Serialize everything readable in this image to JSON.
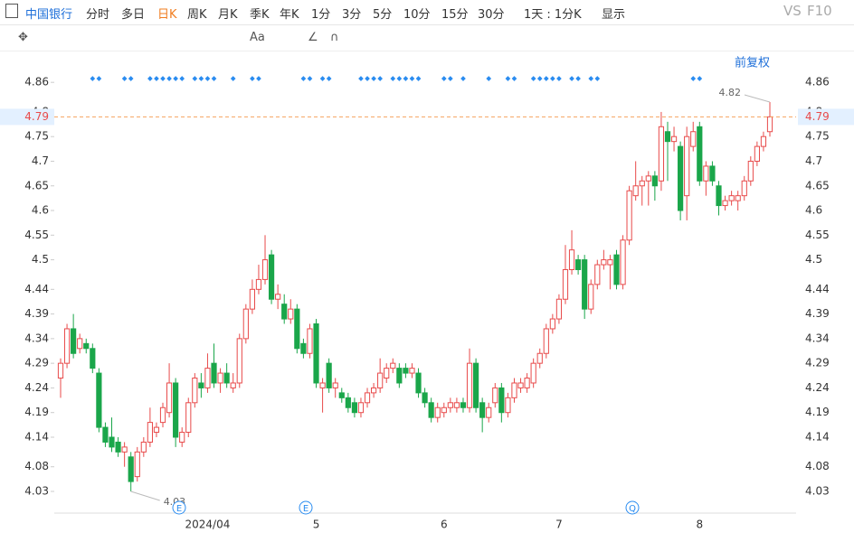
{
  "toolbar": {
    "stock": "中国银行",
    "periods": [
      "分时",
      "多日",
      "日K",
      "周K",
      "月K",
      "季K",
      "年K",
      "1分",
      "3分",
      "5分",
      "10分",
      "15分",
      "30分"
    ],
    "interval": "1天 : 1分K",
    "display": "显示",
    "vs": "VS",
    "f10": "F10",
    "text_tool": "Aa",
    "adjust": "前复权"
  },
  "chart_data": {
    "type": "candlestick",
    "up_color": "#e84a4a",
    "down_color": "#1aa64a",
    "categories": [
      null,
      null,
      null,
      null,
      null,
      null,
      null,
      null,
      null,
      null,
      null,
      null,
      null,
      null,
      null,
      null,
      null,
      null,
      null,
      null,
      null,
      null,
      null,
      "2024/04",
      null,
      null,
      null,
      null,
      null,
      null,
      null,
      null,
      null,
      null,
      null,
      null,
      null,
      null,
      null,
      null,
      "5",
      null,
      null,
      null,
      null,
      null,
      null,
      null,
      null,
      null,
      null,
      null,
      null,
      null,
      null,
      null,
      null,
      null,
      null,
      null,
      "6",
      null,
      null,
      null,
      null,
      null,
      null,
      null,
      null,
      null,
      null,
      null,
      null,
      null,
      null,
      null,
      null,
      null,
      "7",
      null,
      null,
      null,
      null,
      null,
      null,
      null,
      null,
      null,
      null,
      null,
      null,
      null,
      null,
      null,
      null,
      null,
      null,
      null,
      null,
      null,
      "8",
      null,
      null,
      null,
      null,
      null,
      null,
      null,
      null,
      null,
      null
    ],
    "candles": [
      {
        "open": 4.26,
        "high": 4.3,
        "low": 4.22,
        "close": 4.29
      },
      {
        "open": 4.29,
        "high": 4.37,
        "low": 4.28,
        "close": 4.36
      },
      {
        "open": 4.36,
        "high": 4.39,
        "low": 4.3,
        "close": 4.31
      },
      {
        "open": 4.32,
        "high": 4.35,
        "low": 4.31,
        "close": 4.34
      },
      {
        "open": 4.33,
        "high": 4.34,
        "low": 4.31,
        "close": 4.32
      },
      {
        "open": 4.32,
        "high": 4.33,
        "low": 4.27,
        "close": 4.28
      },
      {
        "open": 4.27,
        "high": 4.28,
        "low": 4.15,
        "close": 4.16
      },
      {
        "open": 4.16,
        "high": 4.17,
        "low": 4.12,
        "close": 4.13
      },
      {
        "open": 4.14,
        "high": 4.18,
        "low": 4.11,
        "close": 4.12
      },
      {
        "open": 4.13,
        "high": 4.14,
        "low": 4.1,
        "close": 4.11
      },
      {
        "open": 4.11,
        "high": 4.13,
        "low": 4.08,
        "close": 4.12
      },
      {
        "open": 4.1,
        "high": 4.11,
        "low": 4.03,
        "close": 4.05
      },
      {
        "open": 4.06,
        "high": 4.12,
        "low": 4.05,
        "close": 4.11
      },
      {
        "open": 4.11,
        "high": 4.14,
        "low": 4.1,
        "close": 4.13
      },
      {
        "open": 4.13,
        "high": 4.2,
        "low": 4.12,
        "close": 4.17
      },
      {
        "open": 4.15,
        "high": 4.17,
        "low": 4.14,
        "close": 4.16
      },
      {
        "open": 4.17,
        "high": 4.21,
        "low": 4.16,
        "close": 4.2
      },
      {
        "open": 4.19,
        "high": 4.29,
        "low": 4.18,
        "close": 4.25
      },
      {
        "open": 4.25,
        "high": 4.26,
        "low": 4.12,
        "close": 4.14
      },
      {
        "open": 4.13,
        "high": 4.16,
        "low": 4.12,
        "close": 4.15
      },
      {
        "open": 4.15,
        "high": 4.22,
        "low": 4.14,
        "close": 4.21
      },
      {
        "open": 4.21,
        "high": 4.27,
        "low": 4.2,
        "close": 4.26
      },
      {
        "open": 4.25,
        "high": 4.27,
        "low": 4.22,
        "close": 4.24
      },
      {
        "open": 4.24,
        "high": 4.31,
        "low": 4.23,
        "close": 4.28
      },
      {
        "open": 4.29,
        "high": 4.33,
        "low": 4.24,
        "close": 4.25
      },
      {
        "open": 4.25,
        "high": 4.28,
        "low": 4.23,
        "close": 4.27
      },
      {
        "open": 4.27,
        "high": 4.29,
        "low": 4.24,
        "close": 4.25
      },
      {
        "open": 4.24,
        "high": 4.27,
        "low": 4.23,
        "close": 4.25
      },
      {
        "open": 4.25,
        "high": 4.35,
        "low": 4.24,
        "close": 4.34
      },
      {
        "open": 4.34,
        "high": 4.41,
        "low": 4.33,
        "close": 4.4
      },
      {
        "open": 4.4,
        "high": 4.46,
        "low": 4.39,
        "close": 4.44
      },
      {
        "open": 4.44,
        "high": 4.49,
        "low": 4.43,
        "close": 4.46
      },
      {
        "open": 4.46,
        "high": 4.55,
        "low": 4.45,
        "close": 4.5
      },
      {
        "open": 4.51,
        "high": 4.52,
        "low": 4.41,
        "close": 4.42
      },
      {
        "open": 4.42,
        "high": 4.45,
        "low": 4.4,
        "close": 4.43
      },
      {
        "open": 4.41,
        "high": 4.43,
        "low": 4.37,
        "close": 4.38
      },
      {
        "open": 4.38,
        "high": 4.42,
        "low": 4.37,
        "close": 4.4
      },
      {
        "open": 4.4,
        "high": 4.41,
        "low": 4.31,
        "close": 4.32
      },
      {
        "open": 4.33,
        "high": 4.34,
        "low": 4.3,
        "close": 4.31
      },
      {
        "open": 4.31,
        "high": 4.37,
        "low": 4.3,
        "close": 4.36
      },
      {
        "open": 4.37,
        "high": 4.38,
        "low": 4.24,
        "close": 4.25
      },
      {
        "open": 4.24,
        "high": 4.26,
        "low": 4.19,
        "close": 4.25
      },
      {
        "open": 4.29,
        "high": 4.3,
        "low": 4.23,
        "close": 4.24
      },
      {
        "open": 4.24,
        "high": 4.26,
        "low": 4.22,
        "close": 4.25
      },
      {
        "open": 4.23,
        "high": 4.24,
        "low": 4.21,
        "close": 4.22
      },
      {
        "open": 4.22,
        "high": 4.23,
        "low": 4.19,
        "close": 4.2
      },
      {
        "open": 4.21,
        "high": 4.22,
        "low": 4.18,
        "close": 4.19
      },
      {
        "open": 4.19,
        "high": 4.22,
        "low": 4.18,
        "close": 4.21
      },
      {
        "open": 4.21,
        "high": 4.24,
        "low": 4.2,
        "close": 4.23
      },
      {
        "open": 4.23,
        "high": 4.25,
        "low": 4.22,
        "close": 4.24
      },
      {
        "open": 4.24,
        "high": 4.3,
        "low": 4.23,
        "close": 4.27
      },
      {
        "open": 4.26,
        "high": 4.29,
        "low": 4.25,
        "close": 4.28
      },
      {
        "open": 4.28,
        "high": 4.3,
        "low": 4.27,
        "close": 4.29
      },
      {
        "open": 4.28,
        "high": 4.29,
        "low": 4.24,
        "close": 4.25
      },
      {
        "open": 4.28,
        "high": 4.29,
        "low": 4.26,
        "close": 4.27
      },
      {
        "open": 4.27,
        "high": 4.29,
        "low": 4.26,
        "close": 4.28
      },
      {
        "open": 4.27,
        "high": 4.28,
        "low": 4.22,
        "close": 4.23
      },
      {
        "open": 4.23,
        "high": 4.24,
        "low": 4.2,
        "close": 4.21
      },
      {
        "open": 4.21,
        "high": 4.22,
        "low": 4.17,
        "close": 4.18
      },
      {
        "open": 4.18,
        "high": 4.21,
        "low": 4.17,
        "close": 4.2
      },
      {
        "open": 4.19,
        "high": 4.21,
        "low": 4.18,
        "close": 4.2
      },
      {
        "open": 4.2,
        "high": 4.22,
        "low": 4.19,
        "close": 4.21
      },
      {
        "open": 4.2,
        "high": 4.22,
        "low": 4.19,
        "close": 4.21
      },
      {
        "open": 4.21,
        "high": 4.22,
        "low": 4.19,
        "close": 4.2
      },
      {
        "open": 4.2,
        "high": 4.32,
        "low": 4.19,
        "close": 4.29
      },
      {
        "open": 4.29,
        "high": 4.3,
        "low": 4.19,
        "close": 4.2
      },
      {
        "open": 4.21,
        "high": 4.22,
        "low": 4.15,
        "close": 4.18
      },
      {
        "open": 4.18,
        "high": 4.21,
        "low": 4.17,
        "close": 4.2
      },
      {
        "open": 4.21,
        "high": 4.25,
        "low": 4.2,
        "close": 4.24
      },
      {
        "open": 4.24,
        "high": 4.25,
        "low": 4.17,
        "close": 4.19
      },
      {
        "open": 4.19,
        "high": 4.23,
        "low": 4.18,
        "close": 4.22
      },
      {
        "open": 4.22,
        "high": 4.26,
        "low": 4.21,
        "close": 4.25
      },
      {
        "open": 4.24,
        "high": 4.26,
        "low": 4.23,
        "close": 4.25
      },
      {
        "open": 4.24,
        "high": 4.27,
        "low": 4.23,
        "close": 4.26
      },
      {
        "open": 4.25,
        "high": 4.3,
        "low": 4.24,
        "close": 4.29
      },
      {
        "open": 4.29,
        "high": 4.32,
        "low": 4.28,
        "close": 4.31
      },
      {
        "open": 4.31,
        "high": 4.37,
        "low": 4.3,
        "close": 4.36
      },
      {
        "open": 4.36,
        "high": 4.39,
        "low": 4.35,
        "close": 4.38
      },
      {
        "open": 4.38,
        "high": 4.43,
        "low": 4.37,
        "close": 4.42
      },
      {
        "open": 4.42,
        "high": 4.53,
        "low": 4.41,
        "close": 4.48
      },
      {
        "open": 4.48,
        "high": 4.56,
        "low": 4.47,
        "close": 4.52
      },
      {
        "open": 4.5,
        "high": 4.51,
        "low": 4.47,
        "close": 4.48
      },
      {
        "open": 4.5,
        "high": 4.51,
        "low": 4.38,
        "close": 4.4
      },
      {
        "open": 4.4,
        "high": 4.46,
        "low": 4.39,
        "close": 4.45
      },
      {
        "open": 4.45,
        "high": 4.5,
        "low": 4.44,
        "close": 4.49
      },
      {
        "open": 4.49,
        "high": 4.52,
        "low": 4.48,
        "close": 4.5
      },
      {
        "open": 4.49,
        "high": 4.51,
        "low": 4.44,
        "close": 4.5
      },
      {
        "open": 4.51,
        "high": 4.52,
        "low": 4.44,
        "close": 4.45
      },
      {
        "open": 4.45,
        "high": 4.55,
        "low": 4.44,
        "close": 4.54
      },
      {
        "open": 4.54,
        "high": 4.65,
        "low": 4.53,
        "close": 4.64
      },
      {
        "open": 4.63,
        "high": 4.7,
        "low": 4.62,
        "close": 4.65
      },
      {
        "open": 4.65,
        "high": 4.67,
        "low": 4.61,
        "close": 4.66
      },
      {
        "open": 4.66,
        "high": 4.68,
        "low": 4.61,
        "close": 4.67
      },
      {
        "open": 4.67,
        "high": 4.68,
        "low": 4.62,
        "close": 4.65
      },
      {
        "open": 4.66,
        "high": 4.8,
        "low": 4.64,
        "close": 4.77
      },
      {
        "open": 4.76,
        "high": 4.78,
        "low": 4.66,
        "close": 4.74
      },
      {
        "open": 4.74,
        "high": 4.77,
        "low": 4.72,
        "close": 4.75
      },
      {
        "open": 4.73,
        "high": 4.74,
        "low": 4.58,
        "close": 4.6
      },
      {
        "open": 4.63,
        "high": 4.77,
        "low": 4.58,
        "close": 4.75
      },
      {
        "open": 4.73,
        "high": 4.78,
        "low": 4.72,
        "close": 4.76
      },
      {
        "open": 4.77,
        "high": 4.78,
        "low": 4.65,
        "close": 4.66
      },
      {
        "open": 4.66,
        "high": 4.7,
        "low": 4.63,
        "close": 4.69
      },
      {
        "open": 4.69,
        "high": 4.7,
        "low": 4.65,
        "close": 4.66
      },
      {
        "open": 4.65,
        "high": 4.66,
        "low": 4.59,
        "close": 4.61
      },
      {
        "open": 4.61,
        "high": 4.63,
        "low": 4.6,
        "close": 4.62
      },
      {
        "open": 4.62,
        "high": 4.64,
        "low": 4.61,
        "close": 4.63
      },
      {
        "open": 4.62,
        "high": 4.64,
        "low": 4.6,
        "close": 4.63
      },
      {
        "open": 4.63,
        "high": 4.67,
        "low": 4.62,
        "close": 4.66
      },
      {
        "open": 4.66,
        "high": 4.71,
        "low": 4.65,
        "close": 4.7
      },
      {
        "open": 4.7,
        "high": 4.74,
        "low": 4.69,
        "close": 4.73
      },
      {
        "open": 4.73,
        "high": 4.76,
        "low": 4.72,
        "close": 4.75
      },
      {
        "open": 4.76,
        "high": 4.82,
        "low": 4.75,
        "close": 4.79
      }
    ],
    "ylim": [
      3.986,
      4.908
    ],
    "yticks": [
      4.03,
      4.08,
      4.14,
      4.19,
      4.24,
      4.29,
      4.34,
      4.39,
      4.44,
      4.5,
      4.55,
      4.6,
      4.65,
      4.7,
      4.75,
      4.8,
      4.86
    ],
    "current_price": 4.79,
    "current_color": "#f5a25d",
    "high_label": "4.82",
    "low_label": "4.03",
    "badges": [
      "E",
      "E",
      "Q"
    ]
  }
}
